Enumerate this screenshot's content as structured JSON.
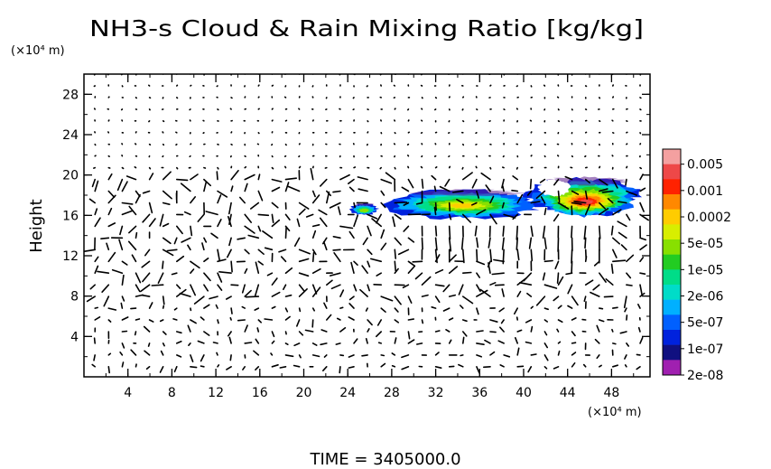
{
  "chart_data": {
    "type": "heatmap",
    "title": "NH3-s Cloud & Rain Mixing Ratio [kg/kg]",
    "xlabel": "",
    "ylabel": "Height",
    "x_unit": "(×10⁴ m)",
    "y_unit": "(×10⁴ m)",
    "xlim": [
      0,
      51.5
    ],
    "ylim": [
      0,
      30
    ],
    "x_ticks": [
      "4",
      "8",
      "12",
      "16",
      "20",
      "24",
      "28",
      "32",
      "36",
      "40",
      "44",
      "48"
    ],
    "y_ticks": [
      "4",
      "8",
      "12",
      "16",
      "20",
      "24",
      "28"
    ],
    "colorbar": {
      "labels": [
        "0.005",
        "0.001",
        "0.0002",
        "5e-05",
        "1e-05",
        "2e-06",
        "5e-07",
        "1e-07",
        "2e-08"
      ],
      "colors": [
        "#f4a0a0",
        "#ee4848",
        "#ff2200",
        "#ff8800",
        "#ffcc00",
        "#d8ee00",
        "#88e000",
        "#22cc22",
        "#00dd88",
        "#00dcc8",
        "#00b0ff",
        "#0060ff",
        "#0022dd",
        "#101080",
        "#a020b0"
      ]
    },
    "regions": [
      {
        "x": [
          24.2,
          26.8
        ],
        "y": [
          16.0,
          17.2
        ],
        "peak": "1e-05"
      },
      {
        "x": [
          27.5,
          41.5
        ],
        "y": [
          15.8,
          18.8
        ],
        "peak": "0.0002"
      },
      {
        "x": [
          40.5,
          50.5
        ],
        "y": [
          15.8,
          19.8
        ],
        "peak": "0.005"
      }
    ],
    "time_label": "TIME = 3405000.0"
  }
}
